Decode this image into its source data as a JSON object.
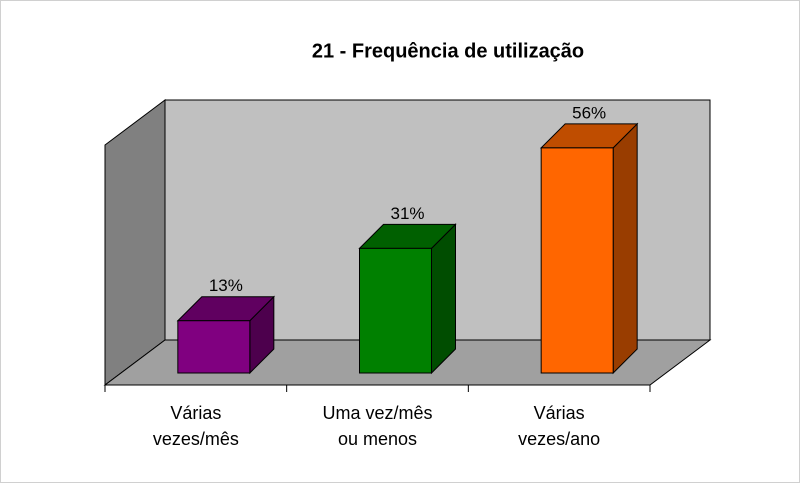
{
  "chart_data": {
    "type": "bar3d",
    "title": "21 - Frequência de utilização",
    "categories": [
      [
        "Várias",
        "vezes/mês"
      ],
      [
        "Uma vez/mês",
        "ou menos"
      ],
      [
        "Várias",
        "vezes/ano"
      ]
    ],
    "values": [
      13,
      31,
      56
    ],
    "value_labels": [
      "13%",
      "31%",
      "56%"
    ],
    "colors": [
      "#800080",
      "#008000",
      "#ff6600"
    ],
    "ylim": [
      0,
      60
    ]
  }
}
